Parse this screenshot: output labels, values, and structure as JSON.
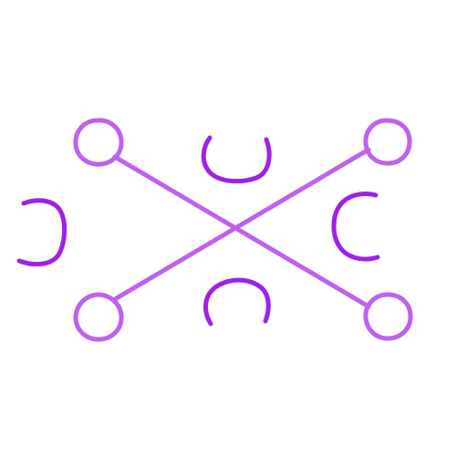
{
  "icon": "crossed-connectors-with-arcs",
  "colors": {
    "background": "#ffffff",
    "connector": "#c060f0",
    "arc": "#a020e8"
  }
}
